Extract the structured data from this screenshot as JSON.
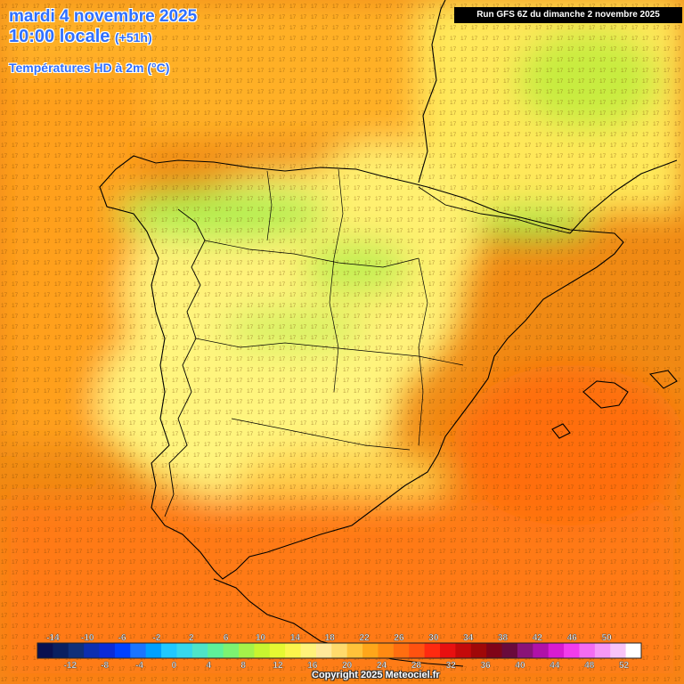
{
  "header": {
    "date_line": "mardi 4 novembre 2025",
    "time_line": "10:00 locale",
    "lead_time": "(+51h)",
    "variable": "Températures HD à 2m (°C)",
    "run_info": "Run GFS 6Z du dimanche 2 novembre 2025"
  },
  "footer": {
    "copyright": "Copyright 2025 Meteociel.fr"
  },
  "legend": {
    "top_labels": [
      "-14",
      "-10",
      "-6",
      "-2",
      "2",
      "6",
      "10",
      "14",
      "18",
      "22",
      "26",
      "30",
      "34",
      "38",
      "42",
      "46",
      "50"
    ],
    "bottom_labels": [
      "-12",
      "-8",
      "-4",
      "0",
      "4",
      "8",
      "12",
      "16",
      "20",
      "24",
      "28",
      "32",
      "36",
      "40",
      "44",
      "48",
      "52"
    ],
    "colors": [
      "#0a1050",
      "#0a2060",
      "#10307a",
      "#0d2fb0",
      "#0b2bd8",
      "#0041ff",
      "#1a75ff",
      "#00a0ff",
      "#20c8ff",
      "#37d7ec",
      "#4ee4c8",
      "#5ef09a",
      "#7cf272",
      "#a4f24a",
      "#c8f530",
      "#e6f832",
      "#fbf54c",
      "#fff27a",
      "#ffe89a",
      "#ffda6c",
      "#ffc23a",
      "#ffa61a",
      "#ff8a12",
      "#ff6e10",
      "#ff5210",
      "#ff2a10",
      "#e81010",
      "#c40a0a",
      "#a00808",
      "#800418",
      "#6a0a3c",
      "#8a1478",
      "#b012a8",
      "#d81cd0",
      "#f23cec",
      "#f46cf2",
      "#f698f6",
      "#f8c4f8",
      "#ffffff"
    ]
  },
  "map_data": {
    "region": "Péninsule Ibérique et Baléares",
    "temperature_grid_values": {
      "atlantic_nw": 17,
      "atlantic_w": 19,
      "atlantic_sw": 20,
      "bay_of_biscay": 16,
      "cantabrian_coast": 8,
      "pyrenees": 9,
      "meseta_north": 11,
      "central_system": 10,
      "meseta_south": 14,
      "andalusia": 17,
      "levante": 18,
      "mediterranean_east": 19,
      "mediterranean_south": 20,
      "balearics": 19,
      "france_southwest": 13,
      "france_south": 12,
      "gulf_of_lion": 14,
      "north_africa": 21
    }
  },
  "colors": {
    "title": "#2f6fff",
    "run_box_bg": "#000000",
    "run_box_text": "#ffffff"
  }
}
